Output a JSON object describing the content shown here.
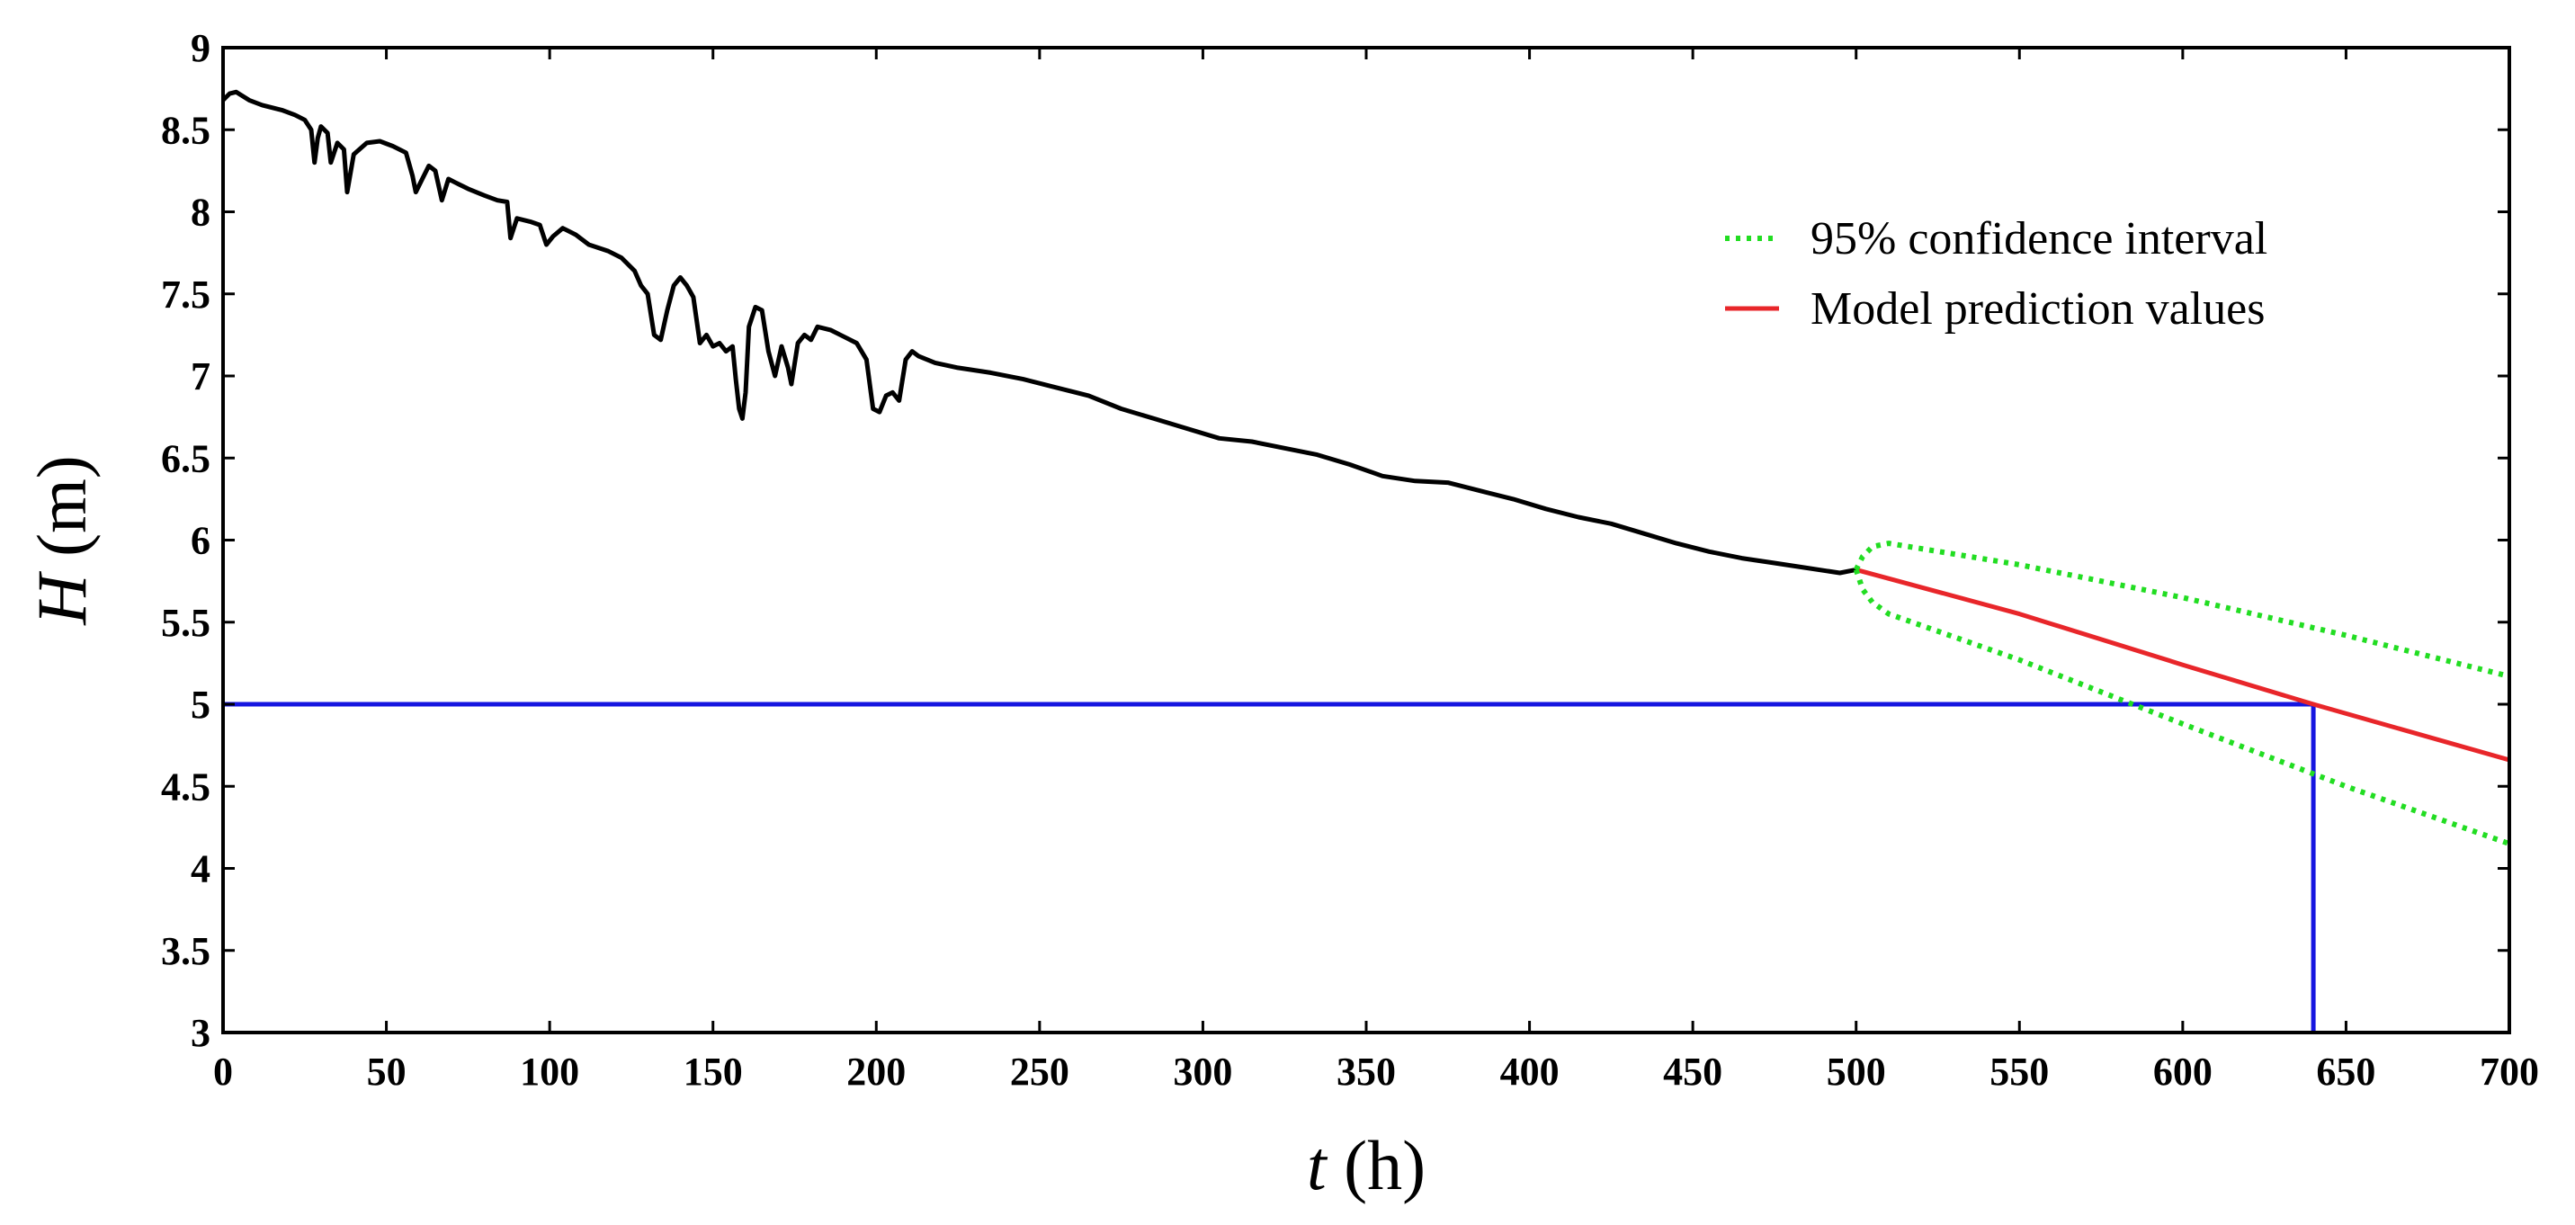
{
  "chart_data": {
    "type": "line",
    "title": "",
    "xlabel": {
      "var": "t",
      "unit": "(h)"
    },
    "ylabel": {
      "var": "H",
      "unit": "(m)"
    },
    "xlim": [
      0,
      700
    ],
    "ylim": [
      3,
      9
    ],
    "xticks": [
      0,
      50,
      100,
      150,
      200,
      250,
      300,
      350,
      400,
      450,
      500,
      550,
      600,
      650,
      700
    ],
    "yticks": [
      3,
      3.5,
      4,
      4.5,
      5,
      5.5,
      6,
      6.5,
      7,
      7.5,
      8,
      8.5,
      9
    ],
    "ytick_labels": [
      "3",
      "3.5",
      "4",
      "4.5",
      "5",
      "5.5",
      "6",
      "6.5",
      "7",
      "7.5",
      "8",
      "8.5",
      "9"
    ],
    "grid": false,
    "legend_position": "top-right",
    "series": [
      {
        "name": "",
        "color": "#000000",
        "style": "solid",
        "points": [
          [
            0,
            8.68
          ],
          [
            2,
            8.72
          ],
          [
            4,
            8.73
          ],
          [
            8,
            8.68
          ],
          [
            12,
            8.65
          ],
          [
            18,
            8.62
          ],
          [
            22,
            8.59
          ],
          [
            25,
            8.56
          ],
          [
            27,
            8.5
          ],
          [
            28,
            8.3
          ],
          [
            29,
            8.45
          ],
          [
            30,
            8.52
          ],
          [
            32,
            8.48
          ],
          [
            33,
            8.3
          ],
          [
            35,
            8.42
          ],
          [
            37,
            8.38
          ],
          [
            38,
            8.12
          ],
          [
            40,
            8.35
          ],
          [
            44,
            8.42
          ],
          [
            48,
            8.43
          ],
          [
            52,
            8.4
          ],
          [
            56,
            8.36
          ],
          [
            58,
            8.22
          ],
          [
            59,
            8.12
          ],
          [
            61,
            8.2
          ],
          [
            63,
            8.28
          ],
          [
            65,
            8.25
          ],
          [
            67,
            8.07
          ],
          [
            69,
            8.2
          ],
          [
            71,
            8.18
          ],
          [
            75,
            8.14
          ],
          [
            80,
            8.1
          ],
          [
            84,
            8.07
          ],
          [
            87,
            8.06
          ],
          [
            88,
            7.84
          ],
          [
            90,
            7.96
          ],
          [
            94,
            7.94
          ],
          [
            97,
            7.92
          ],
          [
            99,
            7.8
          ],
          [
            101,
            7.85
          ],
          [
            104,
            7.9
          ],
          [
            108,
            7.86
          ],
          [
            112,
            7.8
          ],
          [
            118,
            7.76
          ],
          [
            122,
            7.72
          ],
          [
            126,
            7.64
          ],
          [
            128,
            7.55
          ],
          [
            130,
            7.5
          ],
          [
            132,
            7.25
          ],
          [
            134,
            7.22
          ],
          [
            136,
            7.4
          ],
          [
            138,
            7.55
          ],
          [
            140,
            7.6
          ],
          [
            142,
            7.55
          ],
          [
            144,
            7.48
          ],
          [
            146,
            7.2
          ],
          [
            148,
            7.25
          ],
          [
            150,
            7.18
          ],
          [
            152,
            7.2
          ],
          [
            154,
            7.15
          ],
          [
            156,
            7.18
          ],
          [
            157,
            6.98
          ],
          [
            158,
            6.8
          ],
          [
            159,
            6.74
          ],
          [
            160,
            6.9
          ],
          [
            161,
            7.3
          ],
          [
            163,
            7.42
          ],
          [
            165,
            7.4
          ],
          [
            167,
            7.15
          ],
          [
            169,
            7.0
          ],
          [
            171,
            7.18
          ],
          [
            173,
            7.05
          ],
          [
            174,
            6.95
          ],
          [
            176,
            7.2
          ],
          [
            178,
            7.25
          ],
          [
            180,
            7.22
          ],
          [
            182,
            7.3
          ],
          [
            186,
            7.28
          ],
          [
            190,
            7.24
          ],
          [
            194,
            7.2
          ],
          [
            197,
            7.1
          ],
          [
            199,
            6.8
          ],
          [
            201,
            6.78
          ],
          [
            203,
            6.88
          ],
          [
            205,
            6.9
          ],
          [
            207,
            6.85
          ],
          [
            209,
            7.1
          ],
          [
            211,
            7.15
          ],
          [
            213,
            7.12
          ],
          [
            218,
            7.08
          ],
          [
            225,
            7.05
          ],
          [
            235,
            7.02
          ],
          [
            245,
            6.98
          ],
          [
            255,
            6.93
          ],
          [
            265,
            6.88
          ],
          [
            275,
            6.8
          ],
          [
            285,
            6.74
          ],
          [
            295,
            6.68
          ],
          [
            305,
            6.62
          ],
          [
            315,
            6.6
          ],
          [
            325,
            6.56
          ],
          [
            335,
            6.52
          ],
          [
            345,
            6.46
          ],
          [
            355,
            6.39
          ],
          [
            365,
            6.36
          ],
          [
            375,
            6.35
          ],
          [
            385,
            6.3
          ],
          [
            395,
            6.25
          ],
          [
            405,
            6.19
          ],
          [
            415,
            6.14
          ],
          [
            425,
            6.1
          ],
          [
            435,
            6.04
          ],
          [
            445,
            5.98
          ],
          [
            455,
            5.93
          ],
          [
            465,
            5.89
          ],
          [
            475,
            5.86
          ],
          [
            485,
            5.83
          ],
          [
            495,
            5.8
          ],
          [
            500,
            5.82
          ]
        ]
      },
      {
        "name": "Model prediction values",
        "color": "#e8262a",
        "style": "solid",
        "points": [
          [
            500,
            5.82
          ],
          [
            550,
            5.55
          ],
          [
            600,
            5.24
          ],
          [
            640,
            5.0
          ],
          [
            700,
            4.66
          ]
        ]
      },
      {
        "name": "95% confidence interval",
        "color": "#22dd22",
        "style": "dotted",
        "points": [
          [
            500,
            5.82
          ],
          [
            502,
            5.9
          ],
          [
            505,
            5.96
          ],
          [
            510,
            5.98
          ],
          [
            550,
            5.85
          ],
          [
            600,
            5.65
          ],
          [
            650,
            5.42
          ],
          [
            700,
            5.17
          ]
        ]
      },
      {
        "name": "",
        "color": "#22dd22",
        "style": "dotted",
        "points": [
          [
            500,
            5.82
          ],
          [
            502,
            5.7
          ],
          [
            505,
            5.62
          ],
          [
            510,
            5.55
          ],
          [
            550,
            5.27
          ],
          [
            600,
            4.88
          ],
          [
            650,
            4.5
          ],
          [
            700,
            4.15
          ]
        ]
      }
    ],
    "reference_lines": [
      {
        "color": "#1616e0",
        "points": [
          [
            0,
            5
          ],
          [
            640,
            5
          ]
        ]
      },
      {
        "color": "#1616e0",
        "points": [
          [
            640,
            5
          ],
          [
            640,
            3
          ]
        ]
      }
    ],
    "legend": [
      {
        "label": "95% confidence interval",
        "color": "#22dd22",
        "style": "dotted"
      },
      {
        "label": "Model prediction values",
        "color": "#e8262a",
        "style": "solid"
      }
    ]
  }
}
